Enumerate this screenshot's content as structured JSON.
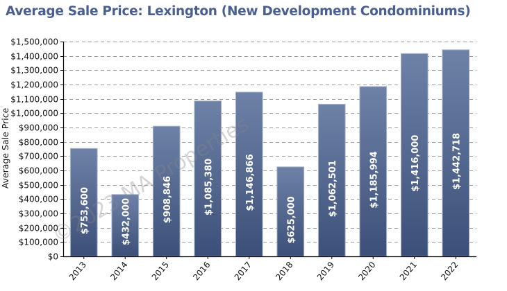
{
  "chart_data": {
    "type": "bar",
    "title": "Average Sale Price: Lexington (New Development Condominiums)",
    "xlabel": "",
    "ylabel": "Average Sale Price",
    "categories": [
      "2013",
      "2014",
      "2015",
      "2016",
      "2017",
      "2018",
      "2019",
      "2020",
      "2021",
      "2022"
    ],
    "values": [
      753600,
      432000,
      908846,
      1085380,
      1146866,
      625000,
      1062501,
      1185994,
      1416000,
      1442718
    ],
    "data_labels": [
      "$753,600",
      "$432,000",
      "$908,846",
      "$1,085,380",
      "$1,146,866",
      "$625,000",
      "$1,062,501",
      "$1,185,994",
      "$1,416,000",
      "$1,442,718"
    ],
    "ylim": [
      0,
      1500000
    ],
    "yticks": [
      0,
      100000,
      200000,
      300000,
      400000,
      500000,
      600000,
      700000,
      800000,
      900000,
      1000000,
      1100000,
      1200000,
      1300000,
      1400000,
      1500000
    ],
    "ytick_labels": [
      "$0",
      "$100,000",
      "$200,000",
      "$300,000",
      "$400,000",
      "$500,000",
      "$600,000",
      "$700,000",
      "$800,000",
      "$900,000",
      "$1,000,000",
      "$1,100,000",
      "$1,200,000",
      "$1,300,000",
      "$1,400,000",
      "$1,500,000"
    ],
    "grid": true,
    "legend": "none",
    "watermark": "©2023 MA Properties",
    "colors": {
      "bar_top": "#6e82a8",
      "bar_bottom": "#3c4f78",
      "bar_edge": "#aab4cc",
      "title": "#4a5f91",
      "grid": "#999999"
    }
  }
}
